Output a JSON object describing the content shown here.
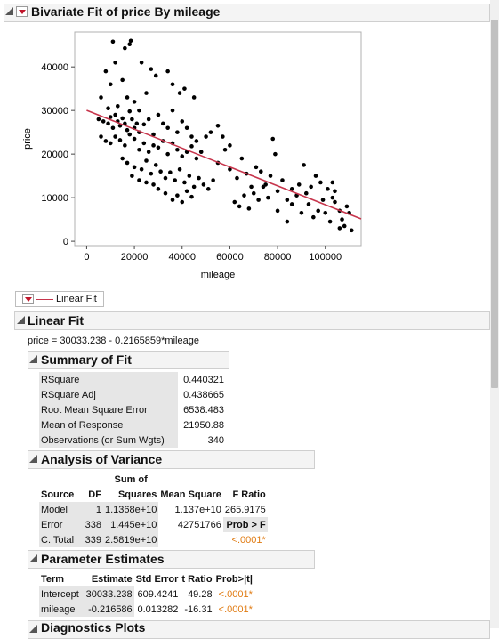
{
  "report_title": "Bivariate Fit of price By mileage",
  "chart_data": {
    "type": "scatter",
    "xlabel": "mileage",
    "ylabel": "price",
    "xlim": [
      -5000,
      115000
    ],
    "ylim": [
      -1000,
      48000
    ],
    "xticks": [
      "0",
      "20000",
      "40000",
      "60000",
      "80000",
      "100000"
    ],
    "yticks": [
      "0",
      "10000",
      "20000",
      "30000",
      "40000"
    ],
    "fit_line": {
      "intercept": 30033.238,
      "slope": -0.2165859,
      "color": "#c7354c"
    },
    "point_color": "#000000",
    "points": [
      [
        11000,
        45800
      ],
      [
        16000,
        44300
      ],
      [
        18000,
        45200
      ],
      [
        18500,
        46000
      ],
      [
        23000,
        41000
      ],
      [
        27000,
        39500
      ],
      [
        29000,
        38000
      ],
      [
        34000,
        39000
      ],
      [
        36000,
        36000
      ],
      [
        39000,
        34000
      ],
      [
        41000,
        35000
      ],
      [
        45000,
        33000
      ],
      [
        8000,
        39000
      ],
      [
        10000,
        36000
      ],
      [
        12000,
        41000
      ],
      [
        15000,
        37000
      ],
      [
        20000,
        32000
      ],
      [
        25000,
        34000
      ],
      [
        22000,
        30000
      ],
      [
        6000,
        33000
      ],
      [
        9000,
        30500
      ],
      [
        13000,
        31000
      ],
      [
        17000,
        33000
      ],
      [
        5000,
        28000
      ],
      [
        7000,
        27500
      ],
      [
        9000,
        27000
      ],
      [
        10000,
        28500
      ],
      [
        11000,
        26000
      ],
      [
        12000,
        29000
      ],
      [
        13000,
        27500
      ],
      [
        14000,
        26500
      ],
      [
        15000,
        28200
      ],
      [
        16000,
        27000
      ],
      [
        17000,
        25500
      ],
      [
        18000,
        29800
      ],
      [
        19000,
        28000
      ],
      [
        20000,
        26000
      ],
      [
        21000,
        27000
      ],
      [
        22000,
        25000
      ],
      [
        24000,
        26800
      ],
      [
        26000,
        28000
      ],
      [
        28000,
        24500
      ],
      [
        30000,
        29000
      ],
      [
        32000,
        27000
      ],
      [
        34000,
        26000
      ],
      [
        36000,
        30000
      ],
      [
        38000,
        25000
      ],
      [
        40000,
        27500
      ],
      [
        42000,
        26000
      ],
      [
        44000,
        24000
      ],
      [
        46000,
        23000
      ],
      [
        6000,
        24000
      ],
      [
        8000,
        23000
      ],
      [
        10000,
        22500
      ],
      [
        12000,
        24000
      ],
      [
        14000,
        23200
      ],
      [
        16000,
        22000
      ],
      [
        18000,
        24500
      ],
      [
        20000,
        23500
      ],
      [
        22000,
        21000
      ],
      [
        24000,
        22500
      ],
      [
        26000,
        20500
      ],
      [
        28000,
        22000
      ],
      [
        30000,
        21500
      ],
      [
        32000,
        23000
      ],
      [
        34000,
        20000
      ],
      [
        36000,
        22500
      ],
      [
        38000,
        21000
      ],
      [
        40000,
        19500
      ],
      [
        42000,
        20500
      ],
      [
        44000,
        21800
      ],
      [
        46000,
        19000
      ],
      [
        48000,
        20500
      ],
      [
        50000,
        24000
      ],
      [
        52000,
        25000
      ],
      [
        55000,
        26500
      ],
      [
        57000,
        24000
      ],
      [
        60000,
        22000
      ],
      [
        15000,
        19000
      ],
      [
        17000,
        18000
      ],
      [
        20000,
        17000
      ],
      [
        23000,
        16500
      ],
      [
        25000,
        18500
      ],
      [
        27000,
        15500
      ],
      [
        29000,
        17500
      ],
      [
        31000,
        16000
      ],
      [
        33000,
        14500
      ],
      [
        35000,
        15800
      ],
      [
        37000,
        14000
      ],
      [
        39000,
        16500
      ],
      [
        41000,
        13500
      ],
      [
        43000,
        15000
      ],
      [
        45000,
        12500
      ],
      [
        47000,
        14500
      ],
      [
        49000,
        13000
      ],
      [
        51000,
        12000
      ],
      [
        53000,
        14000
      ],
      [
        28000,
        13000
      ],
      [
        30000,
        12000
      ],
      [
        33000,
        11000
      ],
      [
        36000,
        9500
      ],
      [
        38000,
        10500
      ],
      [
        40000,
        9000
      ],
      [
        42000,
        11500
      ],
      [
        44000,
        10200
      ],
      [
        22000,
        14000
      ],
      [
        25000,
        13500
      ],
      [
        19000,
        15000
      ],
      [
        55000,
        18000
      ],
      [
        58000,
        21000
      ],
      [
        60000,
        16500
      ],
      [
        63000,
        14500
      ],
      [
        65000,
        19000
      ],
      [
        67000,
        15500
      ],
      [
        69000,
        12500
      ],
      [
        71000,
        17000
      ],
      [
        73000,
        16000
      ],
      [
        75000,
        13000
      ],
      [
        77000,
        15000
      ],
      [
        79000,
        20000
      ],
      [
        62000,
        9000
      ],
      [
        64000,
        8000
      ],
      [
        66000,
        10500
      ],
      [
        68000,
        7500
      ],
      [
        70000,
        11000
      ],
      [
        72000,
        9500
      ],
      [
        74000,
        12500
      ],
      [
        76000,
        10000
      ],
      [
        78000,
        23500
      ],
      [
        80000,
        11500
      ],
      [
        82000,
        14000
      ],
      [
        84000,
        9500
      ],
      [
        86000,
        12000
      ],
      [
        88000,
        10500
      ],
      [
        80000,
        7000
      ],
      [
        84000,
        4500
      ],
      [
        86000,
        8500
      ],
      [
        89000,
        13000
      ],
      [
        91000,
        17500
      ],
      [
        92000,
        11000
      ],
      [
        94000,
        12500
      ],
      [
        96000,
        15000
      ],
      [
        98000,
        13500
      ],
      [
        99000,
        9500
      ],
      [
        101000,
        12000
      ],
      [
        103000,
        13500
      ],
      [
        104000,
        11500
      ],
      [
        97000,
        7000
      ],
      [
        95000,
        5500
      ],
      [
        100000,
        6500
      ],
      [
        102000,
        4500
      ],
      [
        104000,
        9000
      ],
      [
        106000,
        7000
      ],
      [
        107000,
        5000
      ],
      [
        108000,
        3500
      ],
      [
        109000,
        8000
      ],
      [
        110000,
        6500
      ],
      [
        111000,
        2500
      ],
      [
        106000,
        3000
      ],
      [
        103000,
        10000
      ],
      [
        93000,
        8500
      ],
      [
        90000,
        6500
      ]
    ]
  },
  "linear_fit_legend": "Linear Fit",
  "linear_fit_title": "Linear Fit",
  "equation": "price = 30033.238 - 0.2165859*mileage",
  "summary": {
    "title": "Summary of Fit",
    "rows": [
      {
        "label": "RSquare",
        "value": "0.440321"
      },
      {
        "label": "RSquare Adj",
        "value": "0.438665"
      },
      {
        "label": "Root Mean Square Error",
        "value": "6538.483"
      },
      {
        "label": "Mean of Response",
        "value": "21950.88"
      },
      {
        "label": "Observations (or Sum Wgts)",
        "value": "340"
      }
    ]
  },
  "anova": {
    "title": "Analysis of Variance",
    "headers": {
      "source": "Source",
      "df": "DF",
      "ss_top": "Sum of",
      "ss": "Squares",
      "ms": "Mean Square",
      "f": "F Ratio"
    },
    "rows": [
      {
        "source": "Model",
        "df": "1",
        "ss": "1.1368e+10",
        "ms": "1.137e+10",
        "f": "265.9175"
      },
      {
        "source": "Error",
        "df": "338",
        "ss": "1.445e+10",
        "ms": "42751766",
        "f": "Prob > F"
      },
      {
        "source": "C. Total",
        "df": "339",
        "ss": "2.5819e+10",
        "ms": "",
        "f": "<.0001*"
      }
    ]
  },
  "params": {
    "title": "Parameter Estimates",
    "headers": {
      "term": "Term",
      "est": "Estimate",
      "se": "Std Error",
      "t": "t Ratio",
      "p": "Prob>|t|"
    },
    "rows": [
      {
        "term": "Intercept",
        "est": "30033.238",
        "se": "609.4241",
        "t": "49.28",
        "p": "<.0001*"
      },
      {
        "term": "mileage",
        "est": "-0.216586",
        "se": "0.013282",
        "t": "-16.31",
        "p": "<.0001*"
      }
    ]
  },
  "diagnostics_title": "Diagnostics Plots"
}
